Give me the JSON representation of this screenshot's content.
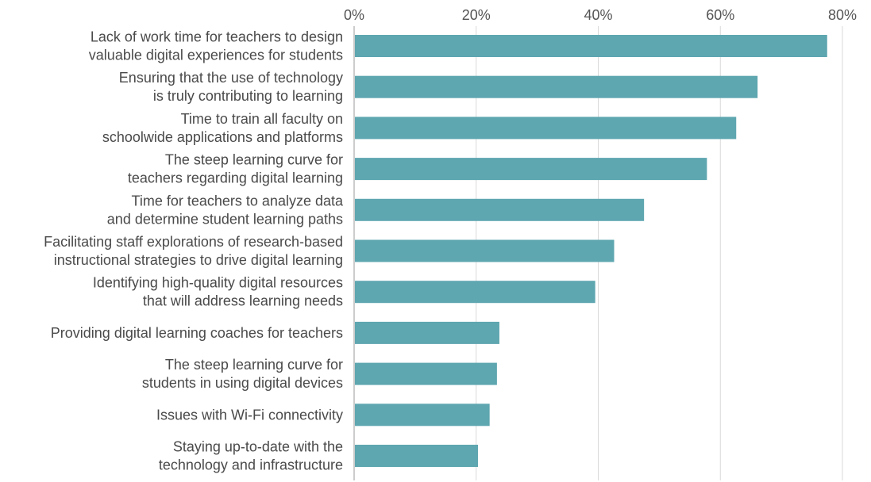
{
  "chart_data": {
    "type": "bar",
    "orientation": "horizontal",
    "title": "",
    "xlabel": "",
    "ylabel": "",
    "xlim": [
      0,
      80
    ],
    "x_ticks": [
      "0%",
      "20%",
      "40%",
      "60%",
      "80%"
    ],
    "x_tick_values": [
      0,
      20,
      40,
      60,
      80
    ],
    "grid": true,
    "axis_position": "top",
    "bar_color": "#5ea6b0",
    "categories": [
      [
        "Lack of work time for teachers to design",
        "valuable digital experiences for students"
      ],
      [
        "Ensuring that the use of technology",
        "is truly contributing to learning"
      ],
      [
        "Time to train all faculty on",
        "schoolwide applications and platforms"
      ],
      [
        "The steep learning curve for",
        "teachers regarding digital learning"
      ],
      [
        "Time for teachers to analyze data",
        "and determine student learning paths"
      ],
      [
        "Facilitating staff explorations of research-based",
        "instructional strategies to drive digital learning"
      ],
      [
        "Identifying high-quality digital resources",
        "that will address learning needs"
      ],
      [
        "Providing digital learning coaches for teachers"
      ],
      [
        "The steep learning curve for",
        "students in using digital devices"
      ],
      [
        "Issues with Wi-Fi connectivity"
      ],
      [
        "Staying up-to-date with the",
        "technology and infrastructure"
      ]
    ],
    "values": [
      77.5,
      66.1,
      62.6,
      57.8,
      47.5,
      42.6,
      39.5,
      23.8,
      23.4,
      22.2,
      20.3
    ]
  }
}
